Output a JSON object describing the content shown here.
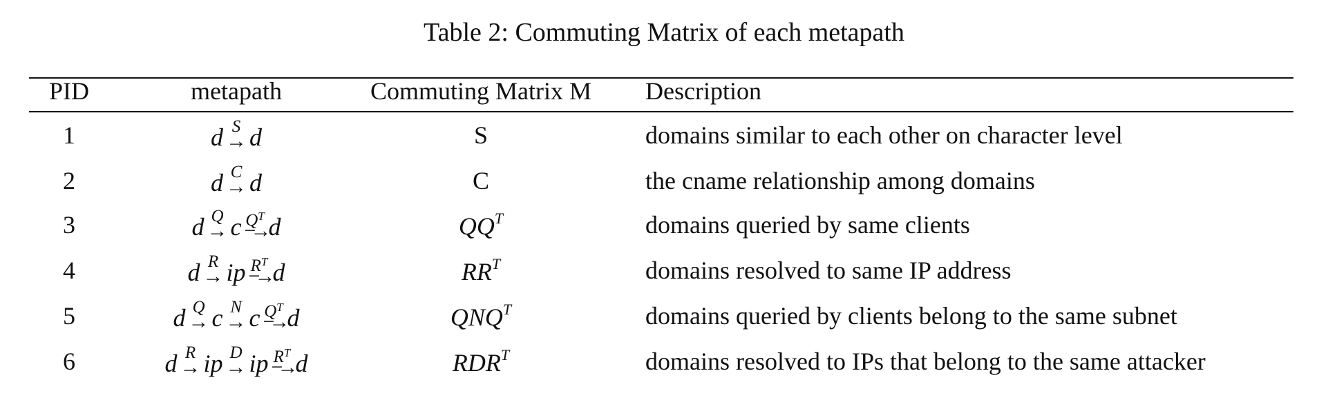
{
  "caption": "Table 2: Commuting Matrix of each metapath",
  "headers": {
    "pid": "PID",
    "metapath": "metapath",
    "matrix": "Commuting Matrix M",
    "description": "Description"
  },
  "rows": [
    {
      "pid": "1",
      "metapath": {
        "nodes": [
          "d",
          "d"
        ],
        "edges": [
          {
            "base": "S",
            "sup": ""
          }
        ]
      },
      "matrix": {
        "base": "S",
        "sup": "",
        "italic": false
      },
      "description": "domains similar to each other on character level"
    },
    {
      "pid": "2",
      "metapath": {
        "nodes": [
          "d",
          "d"
        ],
        "edges": [
          {
            "base": "C",
            "sup": ""
          }
        ]
      },
      "matrix": {
        "base": "C",
        "sup": "",
        "italic": false
      },
      "description": "the cname relationship among domains"
    },
    {
      "pid": "3",
      "metapath": {
        "nodes": [
          "d",
          "c",
          "d"
        ],
        "edges": [
          {
            "base": "Q",
            "sup": ""
          },
          {
            "base": "Q",
            "sup": "T"
          }
        ]
      },
      "matrix": {
        "base": "QQ",
        "sup": "T",
        "italic": true
      },
      "description": "domains queried by same clients"
    },
    {
      "pid": "4",
      "metapath": {
        "nodes": [
          "d",
          "ip",
          "d"
        ],
        "edges": [
          {
            "base": "R",
            "sup": ""
          },
          {
            "base": "R",
            "sup": "T"
          }
        ]
      },
      "matrix": {
        "base": "RR",
        "sup": "T",
        "italic": true
      },
      "description": "domains resolved to same IP address"
    },
    {
      "pid": "5",
      "metapath": {
        "nodes": [
          "d",
          "c",
          "c",
          "d"
        ],
        "edges": [
          {
            "base": "Q",
            "sup": ""
          },
          {
            "base": "N",
            "sup": ""
          },
          {
            "base": "Q",
            "sup": "T"
          }
        ]
      },
      "matrix": {
        "base": "QNQ",
        "sup": "T",
        "italic": true
      },
      "description": "domains queried by clients belong to the same subnet"
    },
    {
      "pid": "6",
      "metapath": {
        "nodes": [
          "d",
          "ip",
          "ip",
          "d"
        ],
        "edges": [
          {
            "base": "R",
            "sup": ""
          },
          {
            "base": "D",
            "sup": ""
          },
          {
            "base": "R",
            "sup": "T"
          }
        ]
      },
      "matrix": {
        "base": "RDR",
        "sup": "T",
        "italic": true
      },
      "description": "domains resolved to IPs that belong to the same attacker"
    }
  ]
}
